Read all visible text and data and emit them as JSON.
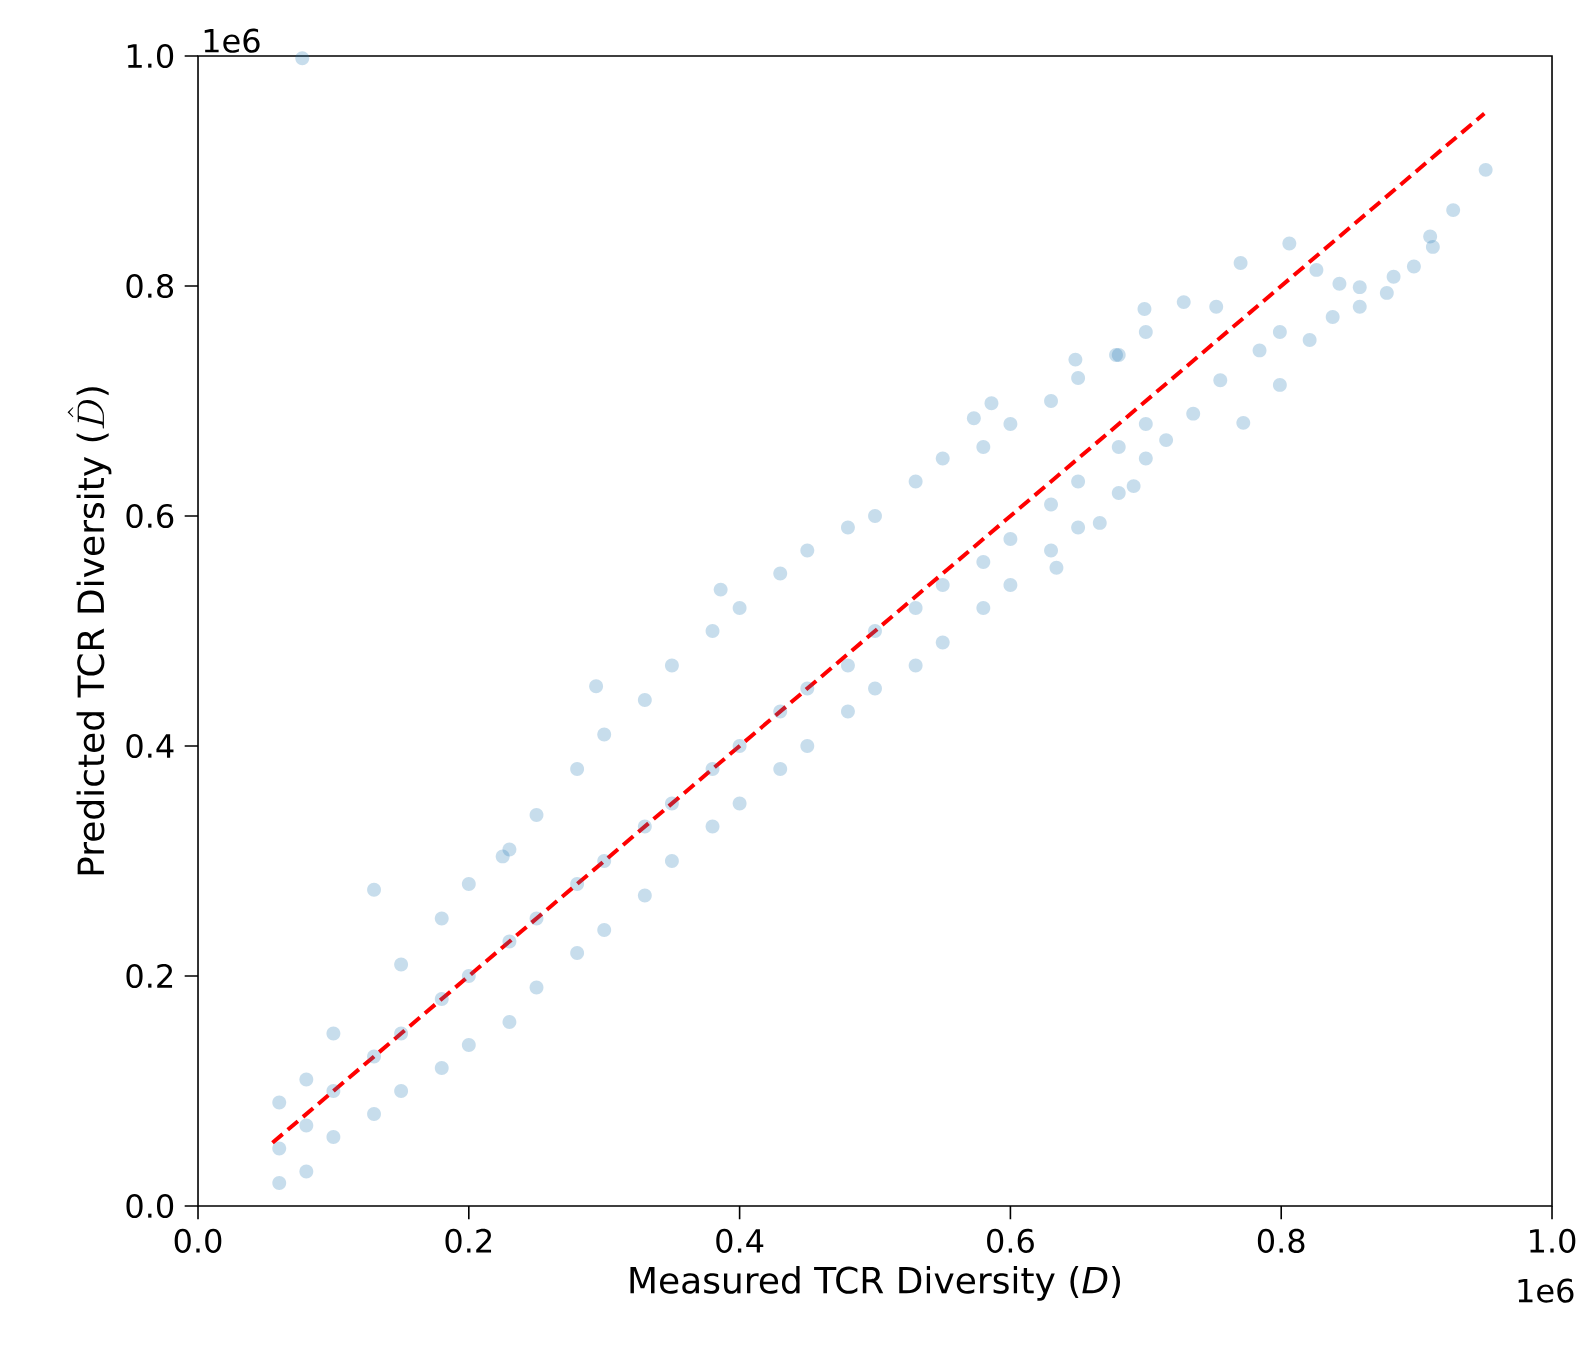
{
  "chart_data": {
    "type": "scatter",
    "xlabel": "Measured TCR Diversity (*D*)",
    "ylabel": "\\textrm{Predicted TCR Diversity (}\\hat{D}\\textrm{)}",
    "xlim": [
      0.0,
      1.0
    ],
    "ylim": [
      0.0,
      1.0
    ],
    "xticks": [
      {
        "value": 0,
        "label": "0.0"
      },
      0.2,
      0.4,
      0.6,
      0.8,
      {
        "value": 1,
        "label": "1.0"
      }
    ],
    "yticks": [
      {
        "value": 0,
        "label": "0.0"
      },
      0.2,
      0.4,
      0.6,
      0.8,
      {
        "value": 1,
        "label": "1.0"
      }
    ],
    "annotations": [
      "1e6",
      "1e6"
    ],
    "marker": "circle",
    "series": [
      {
        "color": "#1f77b4",
        "x": [
          0.06,
          0.06,
          0.06,
          0.08,
          0.08,
          0.08,
          0.1,
          0.1,
          0.1,
          0.13,
          0.13,
          0.13,
          0.15,
          0.15,
          0.15,
          0.18,
          0.18,
          0.18,
          0.2,
          0.2,
          0.2,
          0.23,
          0.23,
          0.23,
          0.25,
          0.25,
          0.25,
          0.28,
          0.28,
          0.28,
          0.3,
          0.3,
          0.3,
          0.33,
          0.33,
          0.33,
          0.35,
          0.35,
          0.35,
          0.38,
          0.38,
          0.38,
          0.4,
          0.4,
          0.4,
          0.43,
          0.43,
          0.43,
          0.45,
          0.45,
          0.45,
          0.48,
          0.48,
          0.48,
          0.5,
          0.5,
          0.5,
          0.53,
          0.53,
          0.53,
          0.55,
          0.55,
          0.55,
          0.58,
          0.58,
          0.58,
          0.6,
          0.6,
          0.6,
          0.63,
          0.63,
          0.63,
          0.65,
          0.65,
          0.65,
          0.68,
          0.68,
          0.68,
          0.7,
          0.7,
          0.7,
          0.951,
          0.927,
          0.91,
          0.912,
          0.898,
          0.883,
          0.878,
          0.858,
          0.858,
          0.843,
          0.838,
          0.821,
          0.806,
          0.826,
          0.77,
          0.799,
          0.799,
          0.772,
          0.752,
          0.728,
          0.699,
          0.678,
          0.648,
          0.784,
          0.755,
          0.735,
          0.715,
          0.691,
          0.666,
          0.634,
          0.573,
          0.586,
          0.294,
          0.386,
          0.225,
          0.077
        ],
        "values": [
          0.05,
          0.09,
          0.02,
          0.07,
          0.11,
          0.03,
          0.1,
          0.15,
          0.06,
          0.13,
          0.275,
          0.08,
          0.15,
          0.21,
          0.1,
          0.18,
          0.25,
          0.12,
          0.2,
          0.28,
          0.14,
          0.23,
          0.31,
          0.16,
          0.25,
          0.34,
          0.19,
          0.28,
          0.38,
          0.22,
          0.3,
          0.41,
          0.24,
          0.33,
          0.44,
          0.27,
          0.35,
          0.47,
          0.3,
          0.38,
          0.5,
          0.33,
          0.4,
          0.52,
          0.35,
          0.43,
          0.55,
          0.38,
          0.45,
          0.57,
          0.4,
          0.47,
          0.59,
          0.43,
          0.5,
          0.6,
          0.45,
          0.52,
          0.63,
          0.47,
          0.54,
          0.65,
          0.49,
          0.56,
          0.66,
          0.52,
          0.58,
          0.68,
          0.54,
          0.61,
          0.7,
          0.57,
          0.63,
          0.72,
          0.59,
          0.66,
          0.74,
          0.62,
          0.68,
          0.76,
          0.65,
          0.901,
          0.866,
          0.843,
          0.834,
          0.817,
          0.808,
          0.794,
          0.799,
          0.782,
          0.802,
          0.773,
          0.753,
          0.837,
          0.814,
          0.82,
          0.76,
          0.714,
          0.681,
          0.782,
          0.786,
          0.78,
          0.74,
          0.736,
          0.744,
          0.718,
          0.689,
          0.666,
          0.626,
          0.594,
          0.555,
          0.685,
          0.698,
          0.452,
          0.536,
          0.304,
          0.998
        ]
      },
      {
        "type": "line",
        "color": "#ff0000",
        "line_style": "dashed",
        "marker": "none",
        "x": [
          0.055,
          0.95
        ],
        "values": [
          0.055,
          0.95
        ]
      }
    ]
  }
}
